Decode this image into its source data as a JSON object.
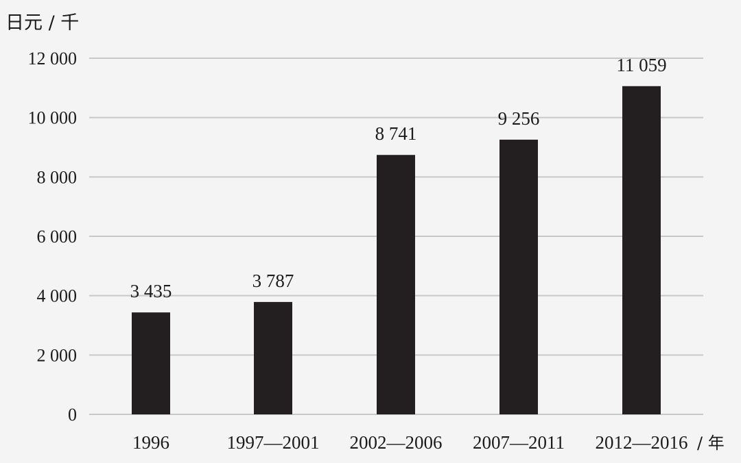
{
  "chart_data": {
    "type": "bar",
    "title": "",
    "ylabel": "日元 / 千",
    "xlabel": "/ 年",
    "categories": [
      "1996",
      "1997—2001",
      "2002—2006",
      "2007—2011",
      "2012—2016"
    ],
    "values": [
      3435,
      3787,
      8741,
      9256,
      11059
    ],
    "value_labels": [
      "3 435",
      "3 787",
      "8 741",
      "9 256",
      "11 059"
    ],
    "ylim": [
      0,
      12000
    ],
    "yticks": [
      0,
      2000,
      4000,
      6000,
      8000,
      10000,
      12000
    ],
    "ytick_labels": [
      "0",
      "2 000",
      "4 000",
      "6 000",
      "8 000",
      "10 000",
      "12 000"
    ],
    "grid": true,
    "legend": "none",
    "colors": {
      "bar": "#231f20",
      "grid": "#c8c8c8",
      "background": "#f4f4f4"
    }
  }
}
